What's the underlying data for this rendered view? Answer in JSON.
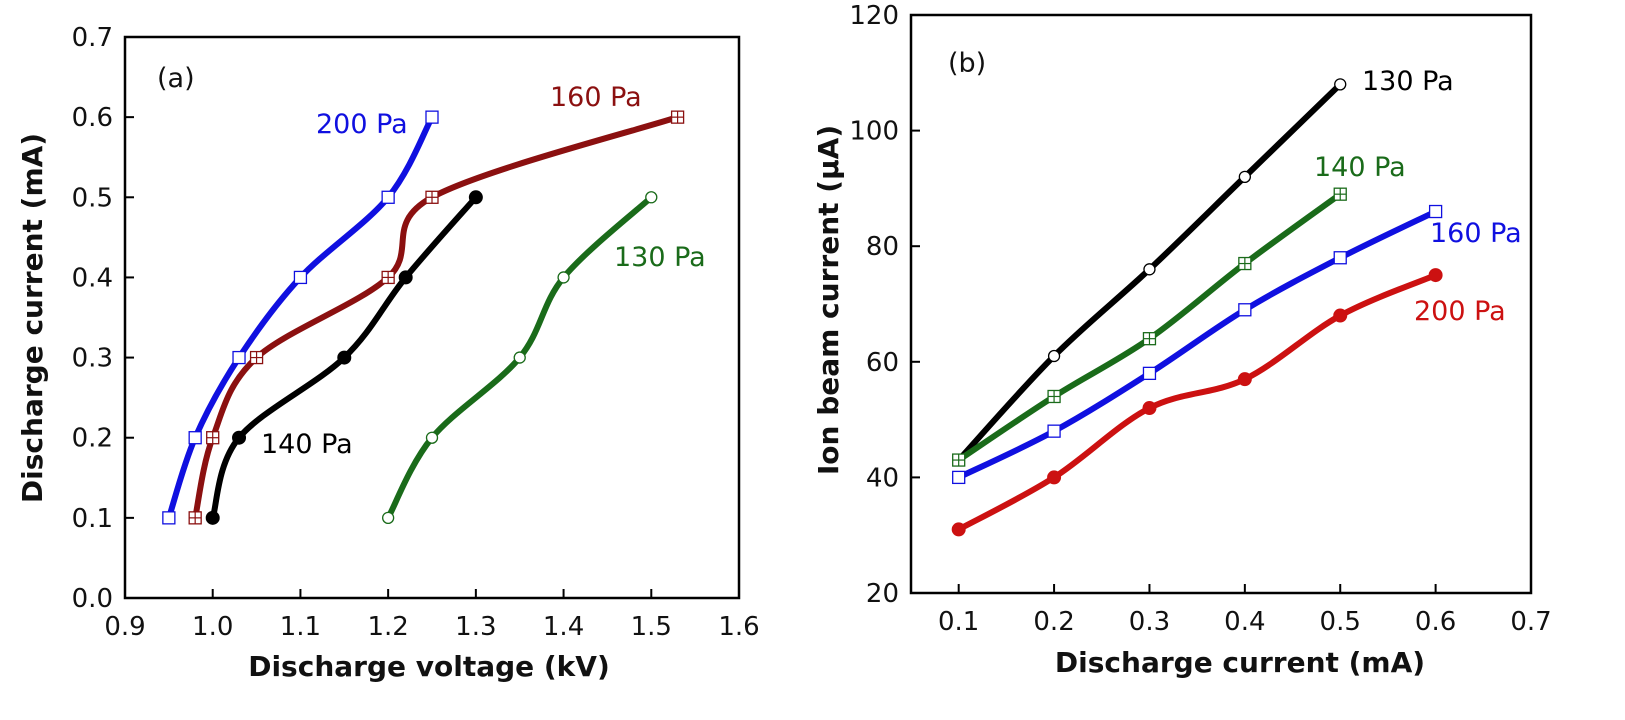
{
  "chart_data": [
    {
      "type": "line",
      "panel_label": "(a)",
      "xlabel": "Discharge voltage (kV)",
      "ylabel": "Discharge current (mA)",
      "xlim": [
        0.9,
        1.6
      ],
      "ylim": [
        0.0,
        0.7
      ],
      "xticks": [
        "0.9",
        "1.0",
        "1.1",
        "1.2",
        "1.3",
        "1.4",
        "1.5",
        "1.6"
      ],
      "yticks": [
        "0.0",
        "0.1",
        "0.2",
        "0.3",
        "0.4",
        "0.5",
        "0.6",
        "0.7"
      ],
      "grid": false,
      "series": [
        {
          "name": "200 Pa",
          "color": "#1010e0",
          "marker": "square-open",
          "x": [
            0.95,
            0.98,
            1.03,
            1.1,
            1.2,
            1.25
          ],
          "y": [
            0.1,
            0.2,
            0.3,
            0.4,
            0.5,
            0.6
          ]
        },
        {
          "name": "160 Pa",
          "color": "#8b1010",
          "marker": "square-plus",
          "x": [
            0.98,
            1.0,
            1.05,
            1.2,
            1.25,
            1.53
          ],
          "y": [
            0.1,
            0.2,
            0.3,
            0.4,
            0.5,
            0.6
          ]
        },
        {
          "name": "140 Pa",
          "color": "#000000",
          "marker": "circle-filled",
          "x": [
            1.0,
            1.03,
            1.15,
            1.22,
            1.3
          ],
          "y": [
            0.1,
            0.2,
            0.3,
            0.4,
            0.5
          ]
        },
        {
          "name": "130 Pa",
          "color": "#1a6b1a",
          "marker": "circle-open",
          "x": [
            1.2,
            1.25,
            1.35,
            1.4,
            1.5
          ],
          "y": [
            0.1,
            0.2,
            0.3,
            0.4,
            0.5
          ]
        }
      ]
    },
    {
      "type": "line",
      "panel_label": "(b)",
      "xlabel": "Discharge current (mA)",
      "ylabel": "Ion beam current (µA)",
      "xlim": [
        0.05,
        0.7
      ],
      "ylim": [
        20,
        120
      ],
      "xticks": [
        "0.1",
        "0.2",
        "0.3",
        "0.4",
        "0.5",
        "0.6",
        "0.7"
      ],
      "yticks": [
        "20",
        "40",
        "60",
        "80",
        "100",
        "120"
      ],
      "grid": false,
      "series": [
        {
          "name": "130 Pa",
          "color": "#000000",
          "marker": "circle-open",
          "x": [
            0.1,
            0.2,
            0.3,
            0.4,
            0.5
          ],
          "y": [
            43,
            61,
            76,
            92,
            108
          ]
        },
        {
          "name": "140 Pa",
          "color": "#1a6b1a",
          "marker": "square-plus",
          "x": [
            0.1,
            0.2,
            0.3,
            0.4,
            0.5
          ],
          "y": [
            43,
            54,
            64,
            77,
            89
          ]
        },
        {
          "name": "160 Pa",
          "color": "#1010e0",
          "marker": "square-open",
          "x": [
            0.1,
            0.2,
            0.3,
            0.4,
            0.5,
            0.6
          ],
          "y": [
            40,
            48,
            58,
            69,
            78,
            86
          ]
        },
        {
          "name": "200 Pa",
          "color": "#cc1111",
          "marker": "circle-filled",
          "x": [
            0.1,
            0.2,
            0.3,
            0.4,
            0.5,
            0.6
          ],
          "y": [
            31,
            40,
            52,
            57,
            68,
            75
          ]
        }
      ]
    }
  ]
}
